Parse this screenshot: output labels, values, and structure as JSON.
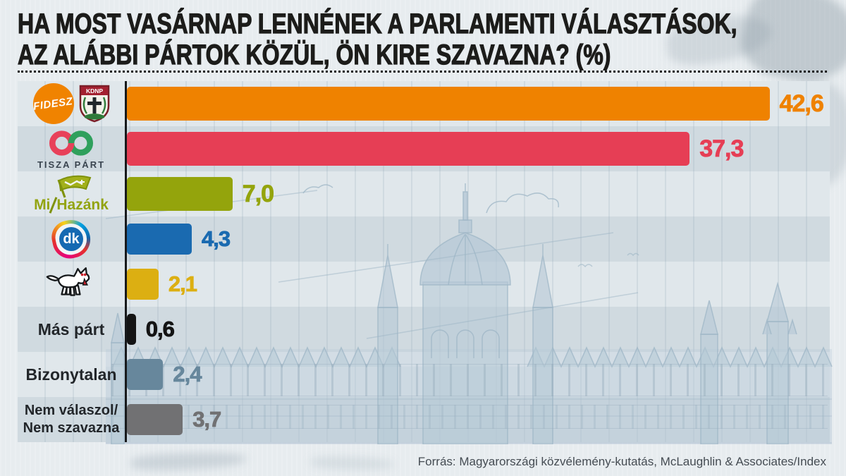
{
  "title": {
    "line1": "HA MOST VASÁRNAP LENNÉNEK A PARLAMENTI VÁLASZTÁSOK,",
    "line2": "AZ ALÁBBI PÁRTOK KÖZÜL, ÖN KIRE SZAVAZNA? (%)"
  },
  "source": "Forrás: Magyarországi közvélemény-kutatás, McLaughlin & Associates/Index",
  "chart_data": {
    "type": "bar",
    "orientation": "horizontal",
    "unit": "%",
    "xlim": [
      0,
      47
    ],
    "categories": [
      "Fidesz–KDNP",
      "Tisza Párt",
      "Mi Hazánk",
      "DK",
      "MKKP (kutya logó)",
      "Más párt",
      "Bizonytalan",
      "Nem válaszol/Nem szavazna"
    ],
    "values": [
      42.6,
      37.3,
      7.0,
      4.3,
      2.1,
      0.6,
      2.4,
      3.7
    ],
    "display_values": [
      "42,6",
      "37,3",
      "7,0",
      "4,3",
      "2,1",
      "0,6",
      "2,4",
      "3,7"
    ],
    "bar_colors": [
      "#ef8200",
      "#e63e55",
      "#94a40c",
      "#1a6ab0",
      "#dcaf12",
      "#141414",
      "#67879c",
      "#717173"
    ],
    "legend_position": "none",
    "grid": "faint-vertical"
  },
  "labels": {
    "fidesz_logo_text": "FIDESZ",
    "kdnp_logo_text": "KDNP",
    "tisza_logo_text": "TISZA PÁRT",
    "mi_hazank_mi": "Mi",
    "mi_hazank_hazank": "Hazánk",
    "dk_logo_text": "dk",
    "mas_part": "Más párt",
    "bizonytalan": "Bizonytalan",
    "nem_valaszol_line1": "Nem válaszol/",
    "nem_valaszol_line2": "Nem szavazna"
  }
}
